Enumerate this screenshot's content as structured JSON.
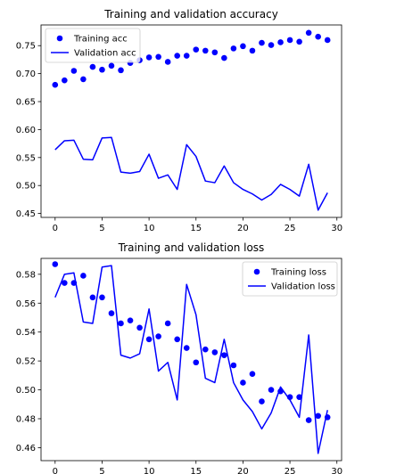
{
  "chart_data": [
    {
      "type": "line",
      "title": "Training and validation accuracy",
      "xlabel": "",
      "ylabel": "",
      "xlim": [
        -1.5,
        30.5
      ],
      "ylim": [
        0.443,
        0.787
      ],
      "xticks": [
        0,
        5,
        10,
        15,
        20,
        25,
        30
      ],
      "yticks": [
        0.45,
        0.5,
        0.55,
        0.6,
        0.65,
        0.7,
        0.75
      ],
      "grid": false,
      "legend_position": "top-left",
      "x": [
        0,
        1,
        2,
        3,
        4,
        5,
        6,
        7,
        8,
        9,
        10,
        11,
        12,
        13,
        14,
        15,
        16,
        17,
        18,
        19,
        20,
        21,
        22,
        23,
        24,
        25,
        26,
        27,
        28,
        29
      ],
      "series": [
        {
          "name": "Training acc",
          "style": "dots",
          "color": "#0000ff",
          "values": [
            0.68,
            0.688,
            0.705,
            0.69,
            0.712,
            0.707,
            0.714,
            0.706,
            0.719,
            0.724,
            0.729,
            0.73,
            0.721,
            0.732,
            0.732,
            0.743,
            0.741,
            0.738,
            0.728,
            0.745,
            0.749,
            0.741,
            0.755,
            0.751,
            0.756,
            0.76,
            0.757,
            0.773,
            0.766,
            0.76
          ]
        },
        {
          "name": "Validation acc",
          "style": "line",
          "color": "#0000ff",
          "values": [
            0.564,
            0.58,
            0.581,
            0.547,
            0.546,
            0.585,
            0.586,
            0.524,
            0.522,
            0.525,
            0.556,
            0.513,
            0.519,
            0.493,
            0.573,
            0.552,
            0.508,
            0.505,
            0.535,
            0.505,
            0.493,
            0.485,
            0.474,
            0.484,
            0.502,
            0.493,
            0.481,
            0.538,
            0.456,
            0.487
          ]
        }
      ]
    },
    {
      "type": "line",
      "title": "Training and validation loss",
      "xlabel": "",
      "ylabel": "",
      "xlim": [
        -1.5,
        30.5
      ],
      "ylim": [
        0.451,
        0.591
      ],
      "xticks": [
        0,
        5,
        10,
        15,
        20,
        25,
        30
      ],
      "yticks": [
        0.46,
        0.48,
        0.5,
        0.52,
        0.54,
        0.56,
        0.58
      ],
      "grid": false,
      "legend_position": "top-right",
      "x": [
        0,
        1,
        2,
        3,
        4,
        5,
        6,
        7,
        8,
        9,
        10,
        11,
        12,
        13,
        14,
        15,
        16,
        17,
        18,
        19,
        20,
        21,
        22,
        23,
        24,
        25,
        26,
        27,
        28,
        29
      ],
      "series": [
        {
          "name": "Training loss",
          "style": "dots",
          "color": "#0000ff",
          "values": [
            0.587,
            0.574,
            0.574,
            0.579,
            0.564,
            0.564,
            0.553,
            0.546,
            0.548,
            0.543,
            0.535,
            0.537,
            0.546,
            0.535,
            0.529,
            0.519,
            0.528,
            0.526,
            0.524,
            0.517,
            0.505,
            0.511,
            0.492,
            0.5,
            0.499,
            0.495,
            0.495,
            0.479,
            0.482,
            0.481
          ]
        },
        {
          "name": "Validation loss",
          "style": "line",
          "color": "#0000ff",
          "values": [
            0.564,
            0.58,
            0.581,
            0.547,
            0.546,
            0.585,
            0.586,
            0.524,
            0.522,
            0.525,
            0.556,
            0.513,
            0.519,
            0.493,
            0.573,
            0.552,
            0.508,
            0.505,
            0.535,
            0.505,
            0.493,
            0.485,
            0.473,
            0.484,
            0.502,
            0.493,
            0.481,
            0.538,
            0.456,
            0.486
          ]
        }
      ]
    }
  ]
}
